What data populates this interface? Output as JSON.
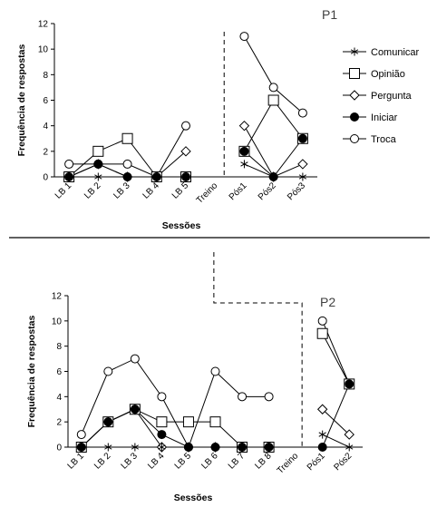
{
  "chart_data": [
    {
      "type": "line",
      "title": "P1",
      "xlabel": "Sessões",
      "ylabel": "Frequência de respostas",
      "ylim": [
        0,
        12
      ],
      "yticks": [
        0,
        2,
        4,
        6,
        8,
        10,
        12
      ],
      "categories": [
        "LB 1",
        "LB 2",
        "LB 3",
        "LB 4",
        "LB 5",
        "Treino",
        "Pós1",
        "Pós2",
        "Pós3"
      ],
      "phase_change_after": "Treino",
      "legend_position": "right",
      "series": [
        {
          "name": "Comunicar",
          "marker": "asterisk",
          "values": [
            0,
            0,
            0,
            0,
            0,
            null,
            1,
            0,
            0
          ]
        },
        {
          "name": "Opinião",
          "marker": "square",
          "values": [
            0,
            2,
            3,
            0,
            0,
            null,
            2,
            6,
            3
          ]
        },
        {
          "name": "Pergunta",
          "marker": "diamond",
          "values": [
            0,
            1,
            0,
            0,
            2,
            null,
            4,
            0,
            1
          ]
        },
        {
          "name": "Iniciar",
          "marker": "filled-circle",
          "values": [
            0,
            1,
            0,
            0,
            0,
            null,
            2,
            0,
            3
          ]
        },
        {
          "name": "Troca",
          "marker": "circle",
          "values": [
            1,
            1,
            1,
            0,
            4,
            null,
            11,
            7,
            5
          ]
        }
      ]
    },
    {
      "type": "line",
      "title": "P2",
      "xlabel": "Sessões",
      "ylabel": "Frequência de respostas",
      "ylim": [
        0,
        12
      ],
      "yticks": [
        0,
        2,
        4,
        6,
        8,
        10,
        12
      ],
      "categories": [
        "LB 1",
        "LB 2",
        "LB 3",
        "LB 4",
        "LB 5",
        "LB 6",
        "LB 7",
        "LB 8",
        "Treino",
        "Pós1",
        "Pós2"
      ],
      "phase_change_after": "Treino",
      "series": [
        {
          "name": "Comunicar",
          "marker": "asterisk",
          "values": [
            0,
            0,
            0,
            0,
            0,
            0,
            0,
            0,
            null,
            1,
            0
          ]
        },
        {
          "name": "Opinião",
          "marker": "square",
          "values": [
            0,
            2,
            3,
            2,
            2,
            2,
            0,
            0,
            null,
            9,
            5
          ]
        },
        {
          "name": "Pergunta",
          "marker": "diamond",
          "values": [
            0,
            2,
            3,
            0,
            0,
            0,
            0,
            0,
            null,
            3,
            1
          ]
        },
        {
          "name": "Iniciar",
          "marker": "filled-circle",
          "values": [
            0,
            2,
            3,
            1,
            0,
            0,
            0,
            0,
            null,
            0,
            5
          ]
        },
        {
          "name": "Troca",
          "marker": "circle",
          "values": [
            1,
            6,
            7,
            4,
            0,
            6,
            4,
            4,
            null,
            10,
            5
          ]
        }
      ]
    }
  ]
}
